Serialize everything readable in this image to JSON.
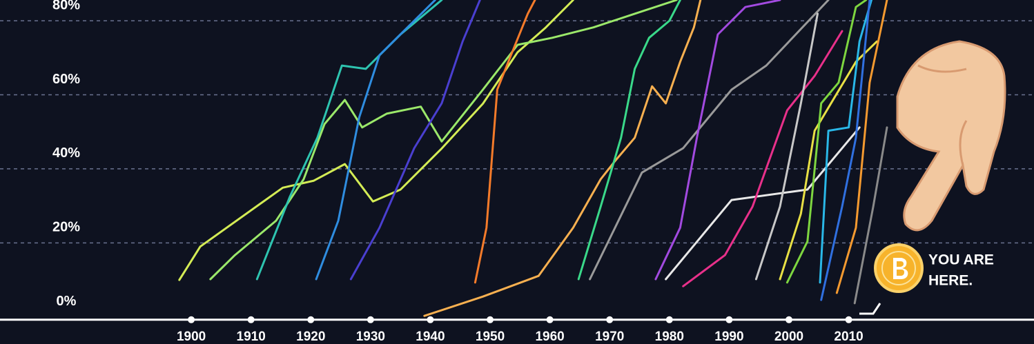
{
  "chart_data": {
    "type": "line",
    "xlim": [
      1868,
      2041
    ],
    "ylim": [
      -7.3,
      85.6
    ],
    "xticks": [
      1900,
      1910,
      1920,
      1930,
      1940,
      1950,
      1960,
      1970,
      1980,
      1990,
      2000,
      2010
    ],
    "yticks": [
      {
        "value": 0,
        "label": "0%"
      },
      {
        "value": 20,
        "label": "20%"
      },
      {
        "value": 40,
        "label": "40%"
      },
      {
        "value": 60,
        "label": "60%"
      },
      {
        "value": 80,
        "label": "80%"
      }
    ],
    "grid": true,
    "annotation": [
      "YOU ARE",
      "HERE."
    ],
    "series": [
      {
        "color": "#d4ec55",
        "x": [
          1898,
          1901.5,
          1915.3,
          1920.5,
          1925.7,
          1930.4,
          1935,
          1941.9,
          1948.8,
          1954.6,
          1959.2,
          1963.9
        ],
        "values": [
          10,
          19,
          34.9,
          36.8,
          41.3,
          31.2,
          34.4,
          45.5,
          57.6,
          71.5,
          78,
          85.6
        ]
      },
      {
        "color": "#9be86a",
        "x": [
          1903.2,
          1907.3,
          1914.2,
          1918.8,
          1922.3,
          1925.7,
          1928.6,
          1932.7,
          1938.4,
          1941.9,
          1948.8,
          1954.6,
          1960.4,
          1967.3,
          1974.2,
          1981.2
        ],
        "values": [
          10.2,
          16.7,
          26,
          37.2,
          52.1,
          58.6,
          51.2,
          54.9,
          56.8,
          47.4,
          61.4,
          73.5,
          75.4,
          78.2,
          81.9,
          85.6
        ]
      },
      {
        "color": "#2ec4b0",
        "x": [
          1911,
          1916.5,
          1921.1,
          1925.2,
          1929.2,
          1935,
          1941.9
        ],
        "values": [
          10.2,
          32.5,
          48.4,
          67.9,
          67,
          76.3,
          85.6
        ]
      },
      {
        "color": "#2f8de0",
        "x": [
          1920.9,
          1924.6,
          1928.1,
          1931.5,
          1937.3,
          1940.8
        ],
        "values": [
          10.2,
          26,
          53.9,
          70.7,
          80,
          85.6
        ]
      },
      {
        "color": "#4a3fd0",
        "x": [
          1926.7,
          1931.5,
          1937.3,
          1941.9,
          1945.4,
          1948.3
        ],
        "values": [
          10.2,
          24.1,
          45.6,
          57.7,
          74.4,
          85.6
        ]
      },
      {
        "color": "#f57b2a",
        "x": [
          1947.5,
          1949.4,
          1951.2,
          1953.5,
          1956.3,
          1957.5
        ],
        "values": [
          9.3,
          24.1,
          61.4,
          70.7,
          81.9,
          85.6
        ]
      },
      {
        "color": "#f8b050",
        "x": [
          1939,
          1948.8,
          1958.1,
          1963.9,
          1968.5,
          1970.8,
          1974.2,
          1977.1,
          1979.4,
          1981.8,
          1984.1,
          1985.2
        ],
        "values": [
          0.3,
          5.5,
          11.1,
          24.1,
          37.2,
          41.9,
          48.4,
          62.3,
          57.7,
          68.9,
          78.2,
          85.6
        ]
      },
      {
        "color": "#3ad98a",
        "x": [
          1964.8,
          1968.5,
          1971.9,
          1974.2,
          1976.6,
          1980,
          1981.8
        ],
        "values": [
          10.2,
          29.8,
          48.4,
          67,
          75.4,
          80,
          85.6
        ]
      },
      {
        "color": "#9a9a9a",
        "x": [
          1966.7,
          1975.4,
          1982.3,
          1990.4,
          1996.2,
          2006.6
        ],
        "values": [
          10.2,
          39,
          45.6,
          61.4,
          67.9,
          85.6
        ]
      },
      {
        "color": "#a24ae0",
        "x": [
          1977.7,
          1981.8,
          1984.6,
          1988.1,
          1992.7,
          1998.5
        ],
        "values": [
          10.2,
          24.1,
          48.4,
          76.3,
          83.7,
          85.6
        ]
      },
      {
        "color": "#e8e8e8",
        "x": [
          1979.4,
          1990.4,
          2003.1,
          2011.8
        ],
        "values": [
          10.2,
          31.6,
          34.4,
          51.2
        ]
      },
      {
        "color": "#e8308a",
        "x": [
          1982.3,
          1989.3,
          1993.9,
          1999.7,
          2004.3,
          2008.9
        ],
        "values": [
          8.3,
          16.7,
          29.8,
          55.8,
          65.1,
          77.2
        ]
      },
      {
        "color": "#c8c8c8",
        "x": [
          1994.5,
          1998.5,
          2002,
          2004.8
        ],
        "values": [
          10.2,
          29.8,
          57.7,
          81.9
        ]
      },
      {
        "color": "#e8e045",
        "x": [
          1998.5,
          2002,
          2004.3,
          2007.7,
          2011.2,
          2014.7
        ],
        "values": [
          10.2,
          27.9,
          50.3,
          59.5,
          68.9,
          74.4
        ]
      },
      {
        "color": "#7ed640",
        "x": [
          1999.7,
          2003.1,
          2005.4,
          2008.3,
          2011.2,
          2012.9
        ],
        "values": [
          9.3,
          20.4,
          57.7,
          63.3,
          83.7,
          85.6
        ]
      },
      {
        "color": "#2ab8e8",
        "x": [
          2005.2,
          2006.6,
          2010,
          2011.8,
          2013.8
        ],
        "values": [
          9.3,
          50.3,
          51.2,
          74.4,
          85.6
        ]
      },
      {
        "color": "#3070e0",
        "x": [
          2005.4,
          2008.9,
          2011.2,
          2013.5
        ],
        "values": [
          4.6,
          29.8,
          48.4,
          85.6
        ]
      },
      {
        "color": "#f59a30",
        "x": [
          2008,
          2011.2,
          2013.5,
          2016.4
        ],
        "values": [
          6.5,
          24.1,
          63.3,
          85.6
        ]
      },
      {
        "color": "#8a8a8a",
        "x": [
          2011,
          2014.1,
          2016.4
        ],
        "values": [
          3.7,
          29.8,
          51.2
        ]
      }
    ]
  }
}
